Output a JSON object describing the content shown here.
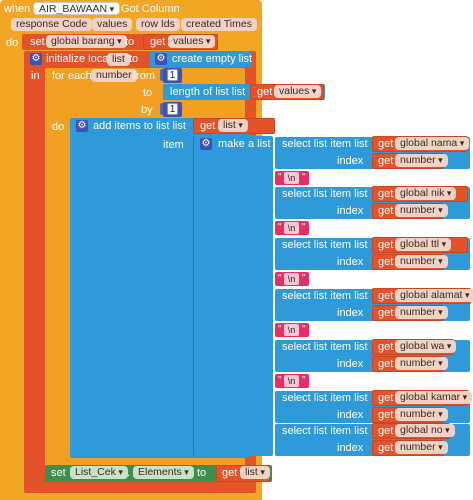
{
  "event": {
    "when": "when",
    "component": "AIR_BAWAAN",
    "event_name": "Got Column",
    "params": [
      "response Code",
      "values",
      "row Ids",
      "created Times"
    ],
    "do": "do"
  },
  "set_barang": {
    "set": "set",
    "var": "global barang",
    "to": "to",
    "get": "get",
    "value": "values"
  },
  "init_local": {
    "label": "initialize local",
    "name": "list",
    "to": "to",
    "create": "create empty list",
    "in": "in"
  },
  "for_each": {
    "label": "for each",
    "var": "number",
    "from": "from",
    "from_val": "1",
    "to": "to",
    "length": "length of list  list",
    "get": "get",
    "list_val": "values",
    "by": "by",
    "by_val": "1",
    "do": "do"
  },
  "add_items": {
    "label": "add items to list  list",
    "get": "get",
    "list_val": "list",
    "item": "item"
  },
  "make_list": {
    "label": "make a list"
  },
  "select_label": "select list item  list",
  "index_label": "index",
  "get_label": "get",
  "number_label": "number",
  "newline": "\\n",
  "items": [
    "global nama",
    "global nik",
    "global ttl",
    "global alamat",
    "global wa",
    "global kamar",
    "global no"
  ],
  "set_cek": {
    "set": "set",
    "component": "List_Cek",
    "property": "Elements",
    "to": "to",
    "get": "get",
    "value": "list"
  },
  "colors": {
    "event": "#f2a724",
    "variable": "#e45229",
    "control": "#f1a022",
    "list": "#2e9ad9",
    "text": "#e62f67",
    "math": "#3f51b5",
    "component": "#3e8f4a"
  }
}
